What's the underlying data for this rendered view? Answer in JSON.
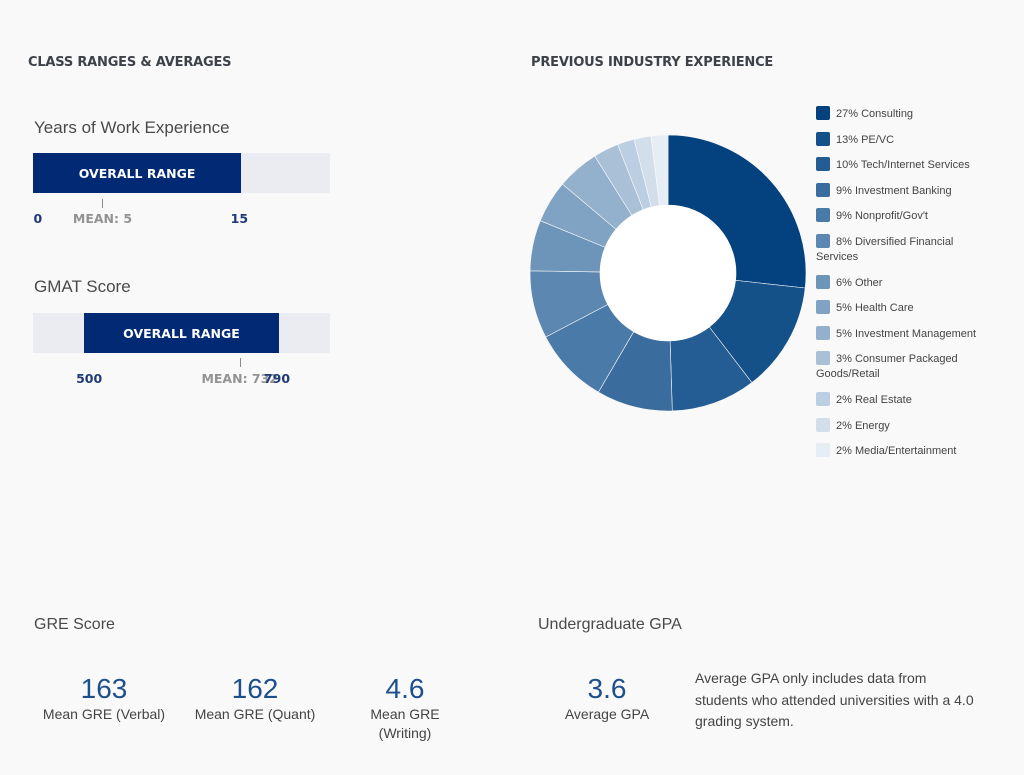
{
  "class_ranges": {
    "title": "CLASS RANGES & AVERAGES",
    "work_experience": {
      "label": "Years of Work Experience",
      "bar_label": "OVERALL RANGE",
      "min_label": "0",
      "max_label": "15",
      "mean_label": "MEAN: 5",
      "min": 0,
      "max": 15,
      "mean": 5,
      "track_min": 0,
      "track_max": 21.4
    },
    "gmat": {
      "label": "GMAT Score",
      "bar_label": "OVERALL RANGE",
      "min_label": "500",
      "max_label": "790",
      "mean_label": "MEAN: 732",
      "min": 500,
      "max": 790,
      "mean": 732,
      "track_min": 424,
      "track_max": 866
    }
  },
  "industry": {
    "title": "PREVIOUS INDUSTRY EXPERIENCE"
  },
  "chart_data": {
    "type": "pie",
    "title": "PREVIOUS INDUSTRY EXPERIENCE",
    "donut": true,
    "legend": "right",
    "slices": [
      {
        "label": "27% Consulting",
        "category": "Consulting",
        "value": 27,
        "color": "#03427f"
      },
      {
        "label": "13% PE/VC",
        "category": "PE/VC",
        "value": 13,
        "color": "#155189"
      },
      {
        "label": "10% Tech/Internet Services",
        "category": "Tech/Internet Services",
        "value": 10,
        "color": "#235d93"
      },
      {
        "label": "9% Investment Banking",
        "category": "Investment Banking",
        "value": 9,
        "color": "#3a6d9e"
      },
      {
        "label": "9% Nonprofit/Gov't",
        "category": "Nonprofit/Gov't",
        "value": 9,
        "color": "#4a7aa8"
      },
      {
        "label": "8% Diversified Financial Services",
        "category": "Diversified Financial Services",
        "value": 8,
        "color": "#5c87b0"
      },
      {
        "label": "6% Other",
        "category": "Other",
        "value": 6,
        "color": "#6d94b9"
      },
      {
        "label": "5% Health Care",
        "category": "Health Care",
        "value": 5,
        "color": "#80a2c3"
      },
      {
        "label": "5% Investment Management",
        "category": "Investment Management",
        "value": 5,
        "color": "#93b0cc"
      },
      {
        "label": "3% Consumer Packaged Goods/Retail",
        "category": "Consumer Packaged Goods/Retail",
        "value": 3,
        "color": "#a9c0d7"
      },
      {
        "label": "2% Real Estate",
        "category": "Real Estate",
        "value": 2,
        "color": "#bccee1"
      },
      {
        "label": "2% Energy",
        "category": "Energy",
        "value": 2,
        "color": "#d2dfeb"
      },
      {
        "label": "2% Media/Entertainment",
        "category": "Media/Entertainment",
        "value": 2,
        "color": "#e6edf4"
      }
    ]
  },
  "gre": {
    "title": "GRE Score",
    "stats": [
      {
        "value": "163",
        "label": "Mean GRE (Verbal)"
      },
      {
        "value": "162",
        "label": "Mean GRE (Quant)"
      },
      {
        "value": "4.6",
        "label": "Mean GRE (Writing)"
      }
    ]
  },
  "gpa": {
    "title": "Undergraduate GPA",
    "value": "3.6",
    "label": "Average GPA",
    "note": "Average GPA only includes data from students who attended universities with a 4.0 grading system."
  }
}
